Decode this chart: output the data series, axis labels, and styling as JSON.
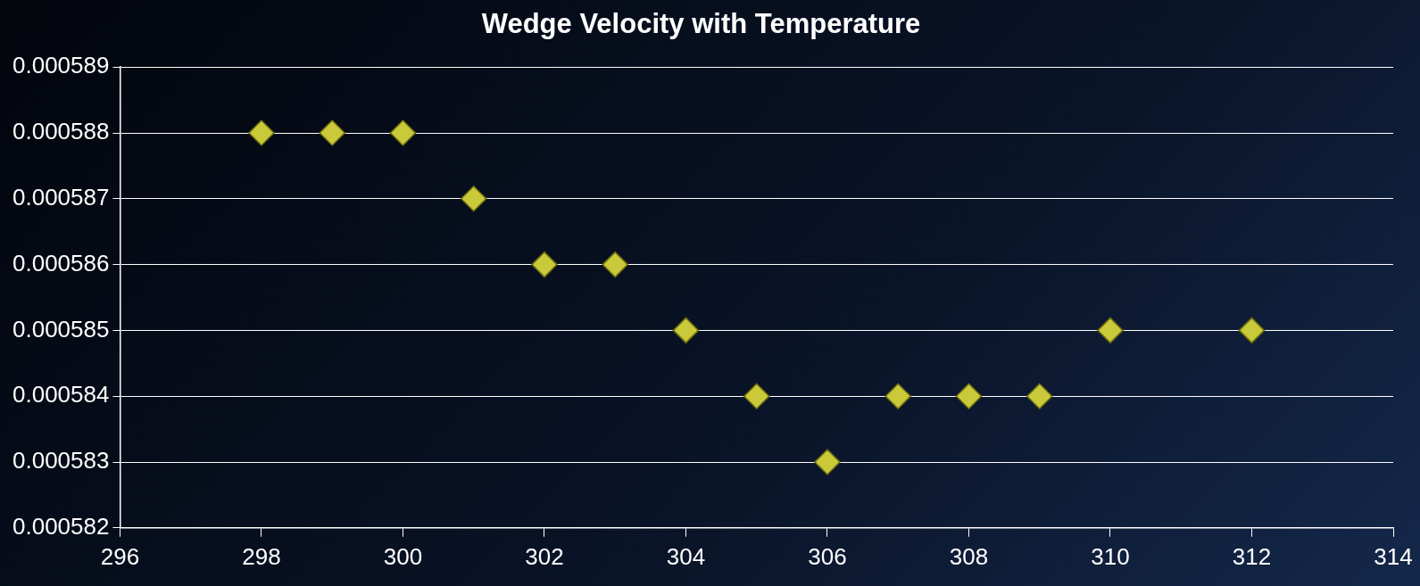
{
  "chart_data": {
    "type": "scatter",
    "title": "Wedge Velocity with Temperature",
    "x": [
      298,
      299,
      300,
      301,
      302,
      303,
      304,
      305,
      306,
      307,
      308,
      309,
      310,
      312
    ],
    "series": [
      {
        "color": "#c9c93a",
        "values": [
          0.000588,
          0.000588,
          0.000588,
          0.000587,
          0.000586,
          0.000586,
          0.000585,
          0.000584,
          0.000583,
          0.000584,
          0.000584,
          0.000584,
          0.000585,
          0.000585
        ]
      }
    ],
    "xlim": [
      296,
      314
    ],
    "xticks": [
      296,
      298,
      300,
      302,
      304,
      306,
      308,
      310,
      312,
      314
    ],
    "ylim": [
      0.000582,
      0.000589
    ],
    "yticks": [
      0.000582,
      0.000583,
      0.000584,
      0.000585,
      0.000586,
      0.000587,
      0.000588,
      0.000589
    ],
    "grid": "y",
    "marker": "diamond",
    "legend": false
  }
}
